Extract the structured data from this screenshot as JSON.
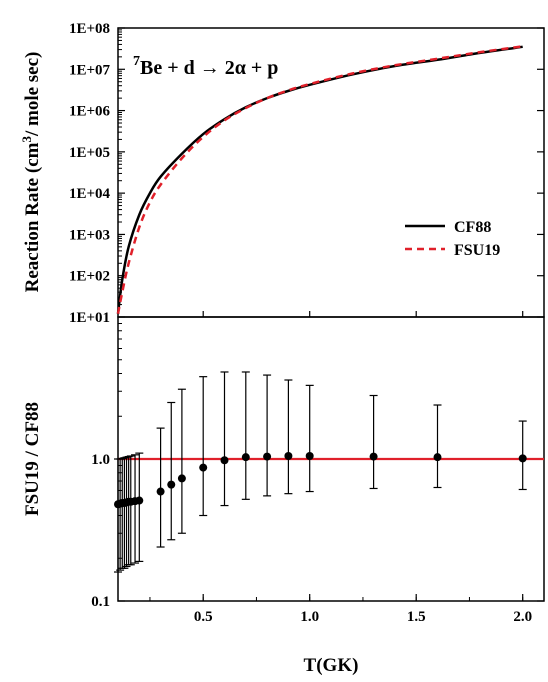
{
  "chart_data": [
    {
      "type": "line",
      "annotation": {
        "prefix": "",
        "sup": "7",
        "text": "Be + d → 2α + p"
      },
      "ylabel": {
        "pre": "Reaction Rate (cm",
        "sup": "3",
        "post": "/ mole sec)"
      },
      "xlim": [
        0.1,
        2.1
      ],
      "ylim": [
        10,
        100000000
      ],
      "yscale": "log",
      "ytick_labels": [
        "1E+01",
        "1E+02",
        "1E+03",
        "1E+04",
        "1E+05",
        "1E+06",
        "1E+07",
        "1E+08"
      ],
      "legend": {
        "placement": "right-middle"
      },
      "series": [
        {
          "name": "CF88",
          "color": "#000000",
          "style": "solid",
          "x": [
            0.1,
            0.12,
            0.15,
            0.2,
            0.25,
            0.3,
            0.4,
            0.5,
            0.6,
            0.7,
            0.8,
            0.9,
            1.0,
            1.2,
            1.4,
            1.6,
            1.8,
            2.0
          ],
          "y": [
            12,
            80,
            500,
            3000,
            10000,
            25000,
            90000,
            270000,
            620000,
            1200000,
            2000000,
            3000000,
            4200000,
            7500000,
            12000000,
            17000000,
            25000000,
            35000000
          ]
        },
        {
          "name": "FSU19",
          "color": "#e0202a",
          "style": "dashed",
          "x": [
            0.1,
            0.12,
            0.15,
            0.2,
            0.25,
            0.3,
            0.4,
            0.5,
            0.6,
            0.7,
            0.8,
            0.9,
            1.0,
            1.2,
            1.4,
            1.6,
            1.8,
            2.0
          ],
          "y": [
            12,
            40,
            200,
            1500,
            6000,
            16000,
            70000,
            230000,
            580000,
            1150000,
            2000000,
            3100000,
            4400000,
            7900000,
            12500000,
            18000000,
            26000000,
            36000000
          ]
        }
      ]
    },
    {
      "type": "scatter",
      "xlabel": "T(GK)",
      "ylabel": "FSU19 / CF88",
      "xlim": [
        0.1,
        2.1
      ],
      "ylim": [
        0.1,
        10
      ],
      "yscale": "log",
      "xticks": [
        0.5,
        1.0,
        1.5,
        2.0
      ],
      "xtick_labels": [
        "0.5",
        "1.0",
        "1.5",
        "2.0"
      ],
      "yticks": [
        0.1,
        1.0
      ],
      "ytick_labels": [
        "0.1",
        "1.0"
      ],
      "reference_line": {
        "y": 1.0,
        "color": "#e0202a"
      },
      "points": {
        "color": "#000000",
        "x": [
          0.1,
          0.11,
          0.12,
          0.13,
          0.14,
          0.15,
          0.16,
          0.18,
          0.2,
          0.3,
          0.35,
          0.4,
          0.5,
          0.6,
          0.7,
          0.8,
          0.9,
          1.0,
          1.3,
          1.6,
          2.0
        ],
        "y": [
          0.48,
          0.485,
          0.49,
          0.49,
          0.495,
          0.5,
          0.5,
          0.505,
          0.51,
          0.59,
          0.66,
          0.73,
          0.87,
          0.98,
          1.03,
          1.04,
          1.05,
          1.05,
          1.04,
          1.03,
          1.01
        ],
        "ylow": [
          0.16,
          0.165,
          0.17,
          0.17,
          0.175,
          0.18,
          0.18,
          0.185,
          0.19,
          0.24,
          0.27,
          0.3,
          0.4,
          0.47,
          0.52,
          0.55,
          0.57,
          0.59,
          0.62,
          0.63,
          0.61
        ],
        "yhigh": [
          1.0,
          1.0,
          1.01,
          1.02,
          1.03,
          1.04,
          1.05,
          1.07,
          1.1,
          1.65,
          2.5,
          3.1,
          3.8,
          4.1,
          4.1,
          3.9,
          3.6,
          3.3,
          2.8,
          2.4,
          1.85
        ]
      }
    }
  ]
}
